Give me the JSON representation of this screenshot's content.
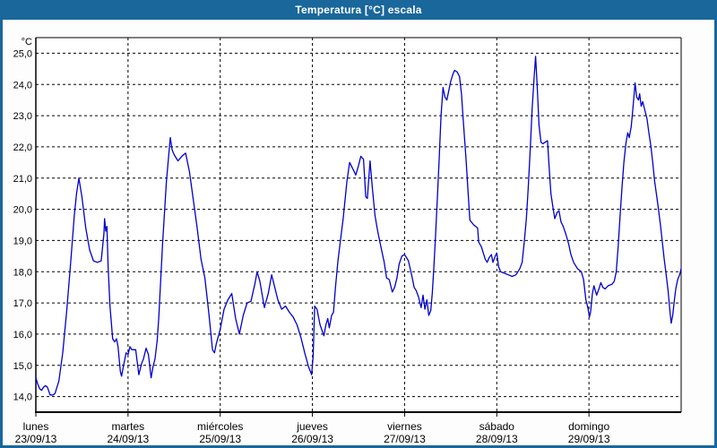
{
  "window": {
    "title": "Temperatura [°C] escala"
  },
  "colors": {
    "frame": "#19679B",
    "titlebar_bg": "#19679B",
    "title_text": "#ffffff",
    "plot_bg": "#ffffff",
    "grid": "#000000",
    "axis": "#000000",
    "tick_text": "#000000",
    "line": "#0000CC"
  },
  "chart_data": {
    "type": "line",
    "title": "Temperatura [°C] escala",
    "ylabel": "°C",
    "y_unit_label": "°C",
    "ylim": [
      13.5,
      25.5
    ],
    "xlim_hours": [
      0,
      168
    ],
    "grid": true,
    "grid_style": "dashed",
    "legend": "none",
    "y_ticks": [
      {
        "value": 25,
        "label": "25,0"
      },
      {
        "value": 24,
        "label": "24,0"
      },
      {
        "value": 23,
        "label": "23,0"
      },
      {
        "value": 22,
        "label": "22,0"
      },
      {
        "value": 21,
        "label": "21,0"
      },
      {
        "value": 20,
        "label": "20,0"
      },
      {
        "value": 19,
        "label": "19,0"
      },
      {
        "value": 18,
        "label": "18,0"
      },
      {
        "value": 17,
        "label": "17,0"
      },
      {
        "value": 16,
        "label": "16,0"
      },
      {
        "value": 15,
        "label": "15,0"
      },
      {
        "value": 14,
        "label": "14,0"
      }
    ],
    "x_day_ticks": [
      {
        "hour": 0,
        "day": "lunes",
        "date": "23/09/13"
      },
      {
        "hour": 24,
        "day": "martes",
        "date": "24/09/13"
      },
      {
        "hour": 48,
        "day": "miércoles",
        "date": "25/09/13"
      },
      {
        "hour": 72,
        "day": "jueves",
        "date": "26/09/13"
      },
      {
        "hour": 96,
        "day": "viernes",
        "date": "27/09/13"
      },
      {
        "hour": 120,
        "day": "sábado",
        "date": "28/09/13"
      },
      {
        "hour": 144,
        "day": "domingo",
        "date": "29/09/13"
      }
    ],
    "series": [
      {
        "name": "Temperatura",
        "points": [
          [
            0,
            14.6
          ],
          [
            0.5,
            14.4
          ],
          [
            1,
            14.25
          ],
          [
            1.5,
            14.2
          ],
          [
            2,
            14.3
          ],
          [
            2.5,
            14.35
          ],
          [
            3,
            14.3
          ],
          [
            3.7,
            14.05
          ],
          [
            4.5,
            14.05
          ],
          [
            5,
            14.1
          ],
          [
            6,
            14.5
          ],
          [
            7,
            15.4
          ],
          [
            8,
            16.7
          ],
          [
            9,
            18.2
          ],
          [
            10,
            19.8
          ],
          [
            10.6,
            20.5
          ],
          [
            11.2,
            21.0
          ],
          [
            12,
            20.4
          ],
          [
            13,
            19.4
          ],
          [
            14,
            18.7
          ],
          [
            15,
            18.35
          ],
          [
            16,
            18.3
          ],
          [
            17,
            18.35
          ],
          [
            17.7,
            19.2
          ],
          [
            17.9,
            19.7
          ],
          [
            18.2,
            19.3
          ],
          [
            18.5,
            19.45
          ],
          [
            18.8,
            18.2
          ],
          [
            19.3,
            16.9
          ],
          [
            20,
            15.85
          ],
          [
            20.5,
            15.75
          ],
          [
            21,
            15.85
          ],
          [
            21.4,
            15.6
          ],
          [
            22,
            14.8
          ],
          [
            22.3,
            14.65
          ],
          [
            23,
            15.1
          ],
          [
            23.5,
            15.4
          ],
          [
            24,
            15.35
          ],
          [
            24.5,
            15.6
          ],
          [
            25,
            15.5
          ],
          [
            26,
            15.5
          ],
          [
            26.8,
            14.7
          ],
          [
            27.5,
            15.05
          ],
          [
            28,
            15.2
          ],
          [
            28.7,
            15.55
          ],
          [
            29.3,
            15.35
          ],
          [
            30,
            14.6
          ],
          [
            30.5,
            14.95
          ],
          [
            31,
            15.2
          ],
          [
            31.6,
            15.8
          ],
          [
            32,
            16.5
          ],
          [
            33,
            18.9
          ],
          [
            34,
            20.9
          ],
          [
            35,
            22.3
          ],
          [
            35.5,
            21.9
          ],
          [
            36,
            21.75
          ],
          [
            37,
            21.55
          ],
          [
            38,
            21.7
          ],
          [
            39,
            21.8
          ],
          [
            40,
            21.2
          ],
          [
            41,
            20.3
          ],
          [
            42,
            19.4
          ],
          [
            43,
            18.4
          ],
          [
            44,
            17.8
          ],
          [
            45,
            16.7
          ],
          [
            46,
            15.5
          ],
          [
            46.5,
            15.4
          ],
          [
            47,
            15.7
          ],
          [
            48,
            16.15
          ],
          [
            49,
            16.8
          ],
          [
            50,
            17.1
          ],
          [
            51,
            17.3
          ],
          [
            52,
            16.5
          ],
          [
            53,
            16.0
          ],
          [
            54,
            16.6
          ],
          [
            55,
            17.0
          ],
          [
            56,
            17.05
          ],
          [
            57,
            17.6
          ],
          [
            57.6,
            18.0
          ],
          [
            58.3,
            17.7
          ],
          [
            59.5,
            16.85
          ],
          [
            60.5,
            17.3
          ],
          [
            61.4,
            17.9
          ],
          [
            62,
            17.6
          ],
          [
            63,
            17.1
          ],
          [
            64,
            16.8
          ],
          [
            65,
            16.9
          ],
          [
            66,
            16.7
          ],
          [
            67,
            16.55
          ],
          [
            68,
            16.3
          ],
          [
            69,
            15.9
          ],
          [
            70,
            15.4
          ],
          [
            71,
            14.95
          ],
          [
            71.8,
            14.7
          ],
          [
            72.2,
            15.3
          ],
          [
            72.6,
            16.9
          ],
          [
            73.2,
            16.8
          ],
          [
            74,
            16.3
          ],
          [
            75,
            15.95
          ],
          [
            75.5,
            16.3
          ],
          [
            76,
            16.5
          ],
          [
            76.4,
            16.2
          ],
          [
            77,
            16.6
          ],
          [
            77.5,
            16.7
          ],
          [
            78,
            17.5
          ],
          [
            78.6,
            18.3
          ],
          [
            79.2,
            18.9
          ],
          [
            80,
            19.7
          ],
          [
            81,
            20.9
          ],
          [
            81.7,
            21.5
          ],
          [
            82.5,
            21.3
          ],
          [
            83.3,
            21.1
          ],
          [
            84,
            21.4
          ],
          [
            84.6,
            21.7
          ],
          [
            85.3,
            21.6
          ],
          [
            85.9,
            20.4
          ],
          [
            86.3,
            20.35
          ],
          [
            87,
            21.55
          ],
          [
            87.6,
            20.7
          ],
          [
            88.3,
            19.8
          ],
          [
            89,
            19.3
          ],
          [
            90,
            18.7
          ],
          [
            90.7,
            18.3
          ],
          [
            91.3,
            17.8
          ],
          [
            92,
            17.75
          ],
          [
            92.8,
            17.35
          ],
          [
            93.4,
            17.5
          ],
          [
            94,
            17.8
          ],
          [
            94.6,
            18.25
          ],
          [
            95.3,
            18.5
          ],
          [
            96,
            18.55
          ],
          [
            96.5,
            18.45
          ],
          [
            97,
            18.35
          ],
          [
            98,
            17.8
          ],
          [
            98.5,
            17.5
          ],
          [
            99,
            17.4
          ],
          [
            99.6,
            17.2
          ],
          [
            100.3,
            16.85
          ],
          [
            100.8,
            17.25
          ],
          [
            101.3,
            16.8
          ],
          [
            101.8,
            17.1
          ],
          [
            102.3,
            16.6
          ],
          [
            102.8,
            16.75
          ],
          [
            103.2,
            17.3
          ],
          [
            103.6,
            18.1
          ],
          [
            104,
            19.0
          ],
          [
            104.5,
            20.3
          ],
          [
            105,
            21.6
          ],
          [
            105.5,
            23.0
          ],
          [
            106,
            23.9
          ],
          [
            106.5,
            23.6
          ],
          [
            107,
            23.5
          ],
          [
            107.5,
            23.8
          ],
          [
            108,
            24.1
          ],
          [
            108.5,
            24.3
          ],
          [
            109,
            24.45
          ],
          [
            109.7,
            24.4
          ],
          [
            110.3,
            24.25
          ],
          [
            110.8,
            23.7
          ],
          [
            111.3,
            22.8
          ],
          [
            112,
            21.6
          ],
          [
            112.6,
            20.4
          ],
          [
            113,
            19.65
          ],
          [
            114,
            19.5
          ],
          [
            115,
            19.4
          ],
          [
            115.3,
            18.95
          ],
          [
            116,
            18.8
          ],
          [
            117,
            18.4
          ],
          [
            117.5,
            18.3
          ],
          [
            118,
            18.45
          ],
          [
            118.6,
            18.55
          ],
          [
            119,
            18.3
          ],
          [
            119.6,
            18.5
          ],
          [
            120,
            18.6
          ],
          [
            120.5,
            18.15
          ],
          [
            121,
            18.0
          ],
          [
            122,
            17.95
          ],
          [
            123,
            17.9
          ],
          [
            124,
            17.85
          ],
          [
            125,
            17.9
          ],
          [
            126,
            18.1
          ],
          [
            126.6,
            18.3
          ],
          [
            127.2,
            19.0
          ],
          [
            127.7,
            19.7
          ],
          [
            128.2,
            20.7
          ],
          [
            128.7,
            21.9
          ],
          [
            129.2,
            23.2
          ],
          [
            129.7,
            24.2
          ],
          [
            130.1,
            24.9
          ],
          [
            130.5,
            24.0
          ],
          [
            131,
            22.7
          ],
          [
            131.5,
            22.15
          ],
          [
            132,
            22.1
          ],
          [
            132.6,
            22.15
          ],
          [
            133.2,
            22.2
          ],
          [
            133.6,
            21.4
          ],
          [
            134.1,
            20.5
          ],
          [
            134.7,
            20.0
          ],
          [
            135.1,
            19.7
          ],
          [
            135.7,
            19.9
          ],
          [
            136.2,
            19.95
          ],
          [
            136.7,
            19.6
          ],
          [
            137.3,
            19.45
          ],
          [
            138,
            19.2
          ],
          [
            138.7,
            18.9
          ],
          [
            139.3,
            18.55
          ],
          [
            140,
            18.3
          ],
          [
            141,
            18.1
          ],
          [
            142,
            18.0
          ],
          [
            142.6,
            17.75
          ],
          [
            143.2,
            17.1
          ],
          [
            143.7,
            16.85
          ],
          [
            144.1,
            16.55
          ],
          [
            144.4,
            16.7
          ],
          [
            144.9,
            17.3
          ],
          [
            145.3,
            17.55
          ],
          [
            146,
            17.25
          ],
          [
            146.6,
            17.45
          ],
          [
            147.1,
            17.65
          ],
          [
            147.6,
            17.5
          ],
          [
            148.2,
            17.45
          ],
          [
            149,
            17.55
          ],
          [
            150,
            17.6
          ],
          [
            150.6,
            17.7
          ],
          [
            151.1,
            18.0
          ],
          [
            151.6,
            18.8
          ],
          [
            152.1,
            19.8
          ],
          [
            152.6,
            20.7
          ],
          [
            153.1,
            21.5
          ],
          [
            153.6,
            22.1
          ],
          [
            154.1,
            22.45
          ],
          [
            154.5,
            22.3
          ],
          [
            155,
            22.65
          ],
          [
            155.5,
            23.3
          ],
          [
            156,
            24.05
          ],
          [
            156.4,
            23.6
          ],
          [
            156.9,
            23.5
          ],
          [
            157.2,
            23.7
          ],
          [
            157.6,
            23.3
          ],
          [
            158,
            23.45
          ],
          [
            158.6,
            23.15
          ],
          [
            159.1,
            22.9
          ],
          [
            159.6,
            22.45
          ],
          [
            160.1,
            22.05
          ],
          [
            160.6,
            21.5
          ],
          [
            161.1,
            20.9
          ],
          [
            161.6,
            20.45
          ],
          [
            162.1,
            20.0
          ],
          [
            162.6,
            19.5
          ],
          [
            163.1,
            18.95
          ],
          [
            163.6,
            18.4
          ],
          [
            164.1,
            17.9
          ],
          [
            164.6,
            17.4
          ],
          [
            165.1,
            16.7
          ],
          [
            165.4,
            16.35
          ],
          [
            165.8,
            16.6
          ],
          [
            166.2,
            17.05
          ],
          [
            166.6,
            17.45
          ],
          [
            167.1,
            17.75
          ],
          [
            167.6,
            17.9
          ],
          [
            168,
            18.1
          ]
        ]
      }
    ]
  }
}
